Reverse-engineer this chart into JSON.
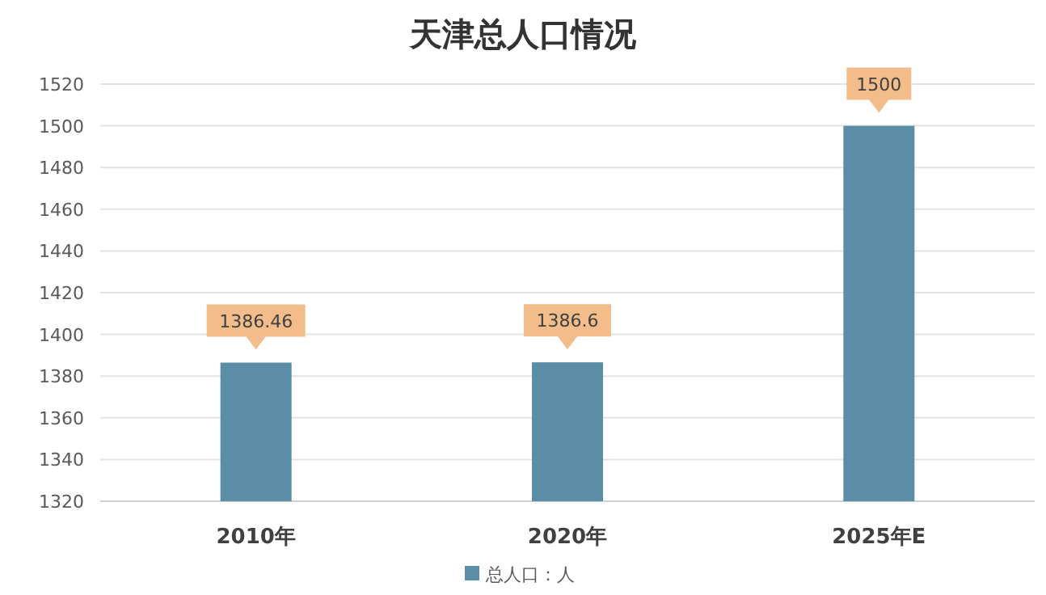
{
  "chart_data": {
    "type": "bar",
    "title": "天津总人口情况",
    "categories": [
      "2010年",
      "2020年",
      "2025年E"
    ],
    "series": [
      {
        "name": "总人口：人",
        "color": "#5b8ea6",
        "values": [
          1386.46,
          1386.6,
          1500
        ]
      }
    ],
    "ylim": [
      1320,
      1520
    ],
    "yticks": [
      1320,
      1340,
      1360,
      1380,
      1400,
      1420,
      1440,
      1460,
      1480,
      1500,
      1520
    ],
    "grid": "y",
    "legend": "bottom",
    "data_labels": true
  }
}
